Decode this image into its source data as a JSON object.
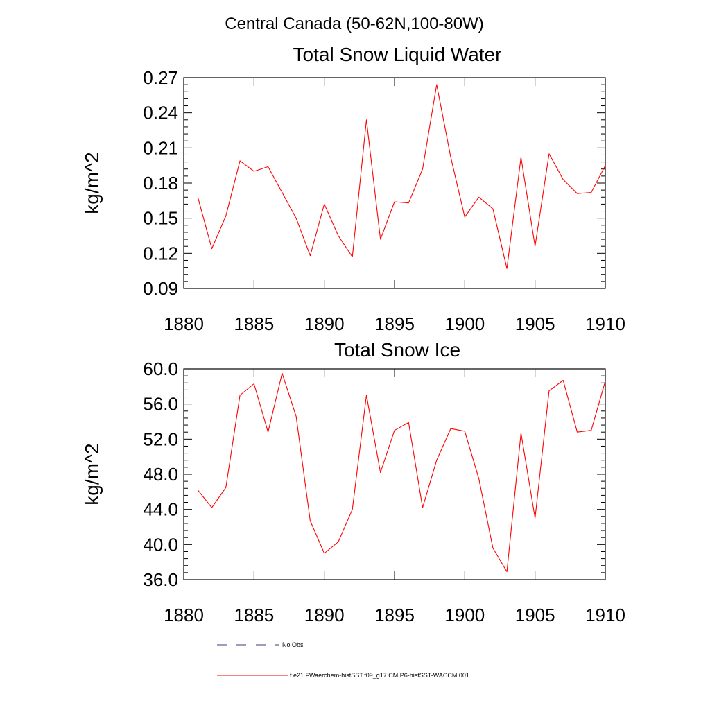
{
  "suptitle": "Central Canada (50-62N,100-80W)",
  "legend": {
    "items": [
      {
        "label": "No Obs",
        "color": "#3a3a7a",
        "dash": true
      },
      {
        "label": "f.e21.FWaerchem-histSST.f09_g17.CMIP6-histSST-WACCM.001",
        "color": "#ff0000",
        "dash": false
      }
    ]
  },
  "chart_data": [
    {
      "type": "line",
      "title": "Total Snow Liquid Water",
      "ylabel": "kg/m^2",
      "xlim": [
        1880,
        1910
      ],
      "ylim": [
        0.09,
        0.27
      ],
      "xticks": [
        1880,
        1885,
        1890,
        1895,
        1900,
        1905,
        1910
      ],
      "xtick_labels": [
        "1880",
        "1885",
        "1890",
        "1895",
        "1900",
        "1905",
        "1910"
      ],
      "yticks": [
        0.09,
        0.12,
        0.15,
        0.18,
        0.21,
        0.24,
        0.27
      ],
      "ytick_labels": [
        "0.09",
        "0.12",
        "0.15",
        "0.18",
        "0.21",
        "0.24",
        "0.27"
      ],
      "series": [
        {
          "name": "f.e21.FWaerchem-histSST.f09_g17.CMIP6-histSST-WACCM.001",
          "color": "#ff0000",
          "x": [
            1881,
            1882,
            1883,
            1884,
            1885,
            1886,
            1887,
            1888,
            1889,
            1890,
            1891,
            1892,
            1893,
            1894,
            1895,
            1896,
            1897,
            1898,
            1899,
            1900,
            1901,
            1902,
            1903,
            1904,
            1905,
            1906,
            1907,
            1908,
            1909,
            1910
          ],
          "values": [
            0.168,
            0.124,
            0.152,
            0.199,
            0.19,
            0.194,
            0.172,
            0.15,
            0.118,
            0.162,
            0.135,
            0.117,
            0.234,
            0.132,
            0.164,
            0.163,
            0.192,
            0.264,
            0.202,
            0.151,
            0.168,
            0.158,
            0.107,
            0.202,
            0.126,
            0.205,
            0.183,
            0.171,
            0.172,
            0.195
          ]
        }
      ]
    },
    {
      "type": "line",
      "title": "Total Snow Ice",
      "ylabel": "kg/m^2",
      "xlim": [
        1880,
        1910
      ],
      "ylim": [
        36.0,
        60.0
      ],
      "xticks": [
        1880,
        1885,
        1890,
        1895,
        1900,
        1905,
        1910
      ],
      "xtick_labels": [
        "1880",
        "1885",
        "1890",
        "1895",
        "1900",
        "1905",
        "1910"
      ],
      "yticks": [
        36.0,
        40.0,
        44.0,
        48.0,
        52.0,
        56.0,
        60.0
      ],
      "ytick_labels": [
        "36.0",
        "40.0",
        "44.0",
        "48.0",
        "52.0",
        "56.0",
        "60.0"
      ],
      "series": [
        {
          "name": "f.e21.FWaerchem-histSST.f09_g17.CMIP6-histSST-WACCM.001",
          "color": "#ff0000",
          "x": [
            1881,
            1882,
            1883,
            1884,
            1885,
            1886,
            1887,
            1888,
            1889,
            1890,
            1891,
            1892,
            1893,
            1894,
            1895,
            1896,
            1897,
            1898,
            1899,
            1900,
            1901,
            1902,
            1903,
            1904,
            1905,
            1906,
            1907,
            1908,
            1909,
            1910
          ],
          "values": [
            46.2,
            44.2,
            46.5,
            57.0,
            58.3,
            52.8,
            59.5,
            54.6,
            42.7,
            39.0,
            40.3,
            44.0,
            57.0,
            48.2,
            53.0,
            53.9,
            44.2,
            49.6,
            53.2,
            52.9,
            47.5,
            39.6,
            36.9,
            52.7,
            43.0,
            57.5,
            58.7,
            52.8,
            53.0,
            58.6
          ]
        }
      ]
    }
  ]
}
